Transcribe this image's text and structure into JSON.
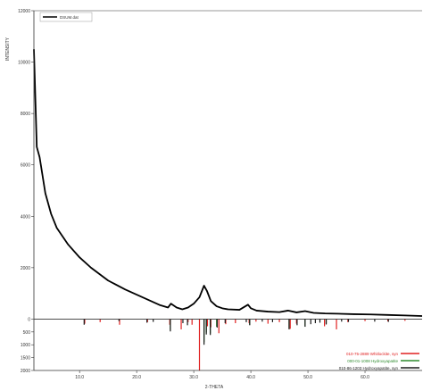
{
  "colors": {
    "pattern": "#000000",
    "whitlockite": "#e02020",
    "hydroxyapatite_green": "#2e8b2e",
    "hydroxyapatite_black": "#1a1a1a",
    "axis": "#333333",
    "background": "#ffffff"
  },
  "chart_data": {
    "type": "line",
    "title": "",
    "xlabel": "2-THETA",
    "ylabel": "INTENSITY",
    "xlim": [
      2,
      70
    ],
    "ylim": [
      -2000,
      12000
    ],
    "upper_ylim": [
      0,
      12000
    ],
    "lower_ylim": [
      0,
      2000
    ],
    "x_ticks": [
      "10.0",
      "20.0",
      "30.0",
      "40.0",
      "50.0",
      "60.0"
    ],
    "x_tick_values": [
      10,
      20,
      30,
      40,
      50,
      60
    ],
    "y_ticks_upper": [
      "12000",
      "10000",
      "8000",
      "6000",
      "4000",
      "2000",
      "0"
    ],
    "y_ticks_lower": [
      "500",
      "1000",
      "1500",
      "2000"
    ],
    "grid": false,
    "legend_position": "top-left",
    "legend_position_refs": "bottom-right",
    "series": [
      {
        "name": "DSUM.dat",
        "kind": "measured-pattern",
        "color": "#000000",
        "x": [
          2.0,
          2.5,
          3.0,
          4.0,
          5.0,
          6.0,
          8.0,
          10.0,
          12.0,
          15.0,
          18.0,
          20.0,
          22.0,
          24.0,
          25.5,
          26.0,
          27.0,
          28.0,
          29.0,
          30.0,
          31.0,
          31.8,
          32.3,
          33.0,
          34.0,
          35.0,
          36.0,
          38.0,
          39.5,
          40.0,
          41.0,
          43.0,
          45.0,
          46.5,
          48.0,
          49.5,
          51.0,
          53.0,
          55.0,
          58.0,
          61.0,
          64.0,
          67.0,
          70.0
        ],
        "y": [
          10500,
          6700,
          6300,
          4900,
          4100,
          3550,
          2900,
          2400,
          2000,
          1500,
          1150,
          950,
          750,
          550,
          450,
          600,
          450,
          380,
          450,
          600,
          850,
          1300,
          1100,
          700,
          500,
          420,
          380,
          360,
          560,
          420,
          330,
          290,
          270,
          330,
          260,
          310,
          240,
          220,
          210,
          190,
          180,
          160,
          140,
          120
        ]
      }
    ],
    "reference_patterns": [
      {
        "name": "010-75-2889 Whitlockite, syn",
        "color": "#e02020",
        "peaks": [
          [
            10.9,
            180
          ],
          [
            13.6,
            120
          ],
          [
            17.0,
            220
          ],
          [
            21.9,
            120
          ],
          [
            25.8,
            220
          ],
          [
            27.8,
            400
          ],
          [
            29.0,
            120
          ],
          [
            29.7,
            220
          ],
          [
            31.0,
            2000
          ],
          [
            32.4,
            280
          ],
          [
            33.0,
            320
          ],
          [
            34.4,
            550
          ],
          [
            35.6,
            200
          ],
          [
            37.3,
            160
          ],
          [
            39.7,
            160
          ],
          [
            40.9,
            100
          ],
          [
            43.0,
            180
          ],
          [
            45.0,
            120
          ],
          [
            46.9,
            380
          ],
          [
            48.0,
            180
          ],
          [
            52.9,
            280
          ],
          [
            55.0,
            400
          ],
          [
            57.0,
            120
          ],
          [
            60.0,
            80
          ],
          [
            64.0,
            90
          ],
          [
            67.0,
            70
          ]
        ]
      },
      {
        "name": "000-01-1008 Hydroxyapatite",
        "color": "#2e8b2e",
        "peaks": [
          [
            25.9,
            420
          ],
          [
            31.8,
            900
          ],
          [
            32.2,
            520
          ],
          [
            32.9,
            560
          ],
          [
            34.0,
            300
          ],
          [
            39.8,
            220
          ],
          [
            46.7,
            360
          ],
          [
            49.5,
            280
          ],
          [
            53.2,
            180
          ]
        ]
      },
      {
        "name": "010-86-1203 Hydroxyapatite, syn",
        "color": "#1a1a1a",
        "peaks": [
          [
            10.8,
            220
          ],
          [
            16.9,
            80
          ],
          [
            21.8,
            140
          ],
          [
            22.9,
            110
          ],
          [
            25.9,
            480
          ],
          [
            28.1,
            160
          ],
          [
            28.9,
            240
          ],
          [
            31.8,
            1000
          ],
          [
            32.2,
            600
          ],
          [
            32.9,
            620
          ],
          [
            34.1,
            330
          ],
          [
            35.5,
            160
          ],
          [
            39.2,
            120
          ],
          [
            39.8,
            240
          ],
          [
            42.0,
            100
          ],
          [
            43.8,
            120
          ],
          [
            46.7,
            400
          ],
          [
            48.1,
            240
          ],
          [
            49.5,
            300
          ],
          [
            50.5,
            200
          ],
          [
            51.3,
            160
          ],
          [
            52.1,
            140
          ],
          [
            53.2,
            210
          ],
          [
            55.9,
            100
          ],
          [
            57.1,
            110
          ],
          [
            61.7,
            100
          ],
          [
            64.1,
            110
          ]
        ]
      }
    ]
  }
}
